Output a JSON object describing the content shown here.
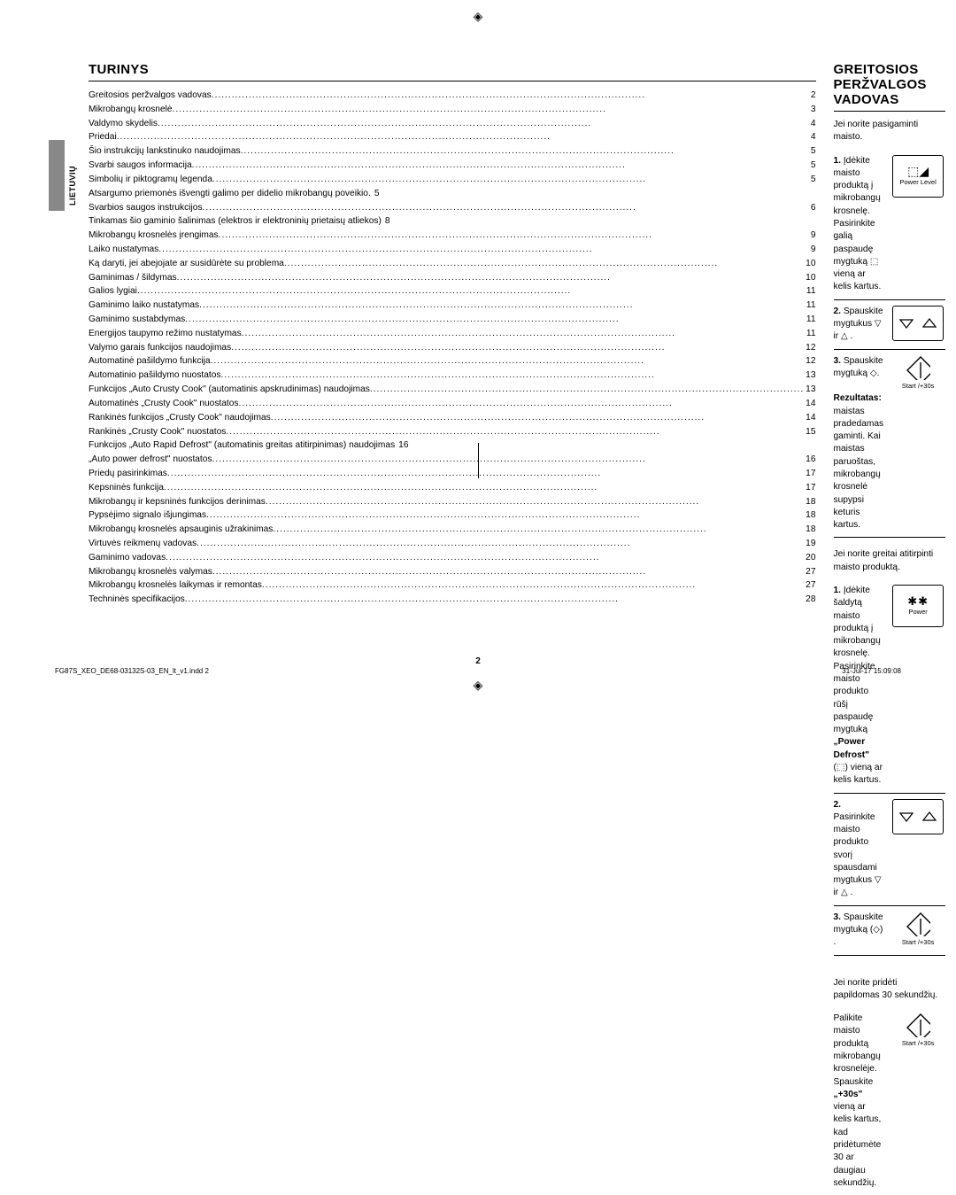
{
  "meta": {
    "side_label": "LIETUVIŲ",
    "page_number": "2",
    "footer_left": "FG87S_XEO_DE68-03132S-03_EN_lt_v1.indd   2",
    "footer_right": "31-Jul-17   15:09:08",
    "registration_mark": "◈"
  },
  "left": {
    "heading": "TURINYS",
    "toc": [
      {
        "t": "Greitosios peržvalgos vadovas",
        "p": "2"
      },
      {
        "t": "Mikrobangų krosnelė",
        "p": "3"
      },
      {
        "t": "Valdymo skydelis",
        "p": "4"
      },
      {
        "t": "Priedai",
        "p": "4"
      },
      {
        "t": "Šio instrukcijų lankstinuko naudojimas",
        "p": "5"
      },
      {
        "t": "Svarbi saugos informacija",
        "p": "5"
      },
      {
        "t": "Simbolių ir piktogramų legenda",
        "p": "5"
      },
      {
        "t": "Atsargumo priemonės išvengti galimo per didelio mikrobangų poveikio.",
        "p": "5",
        "nodots": true
      },
      {
        "t": "Svarbios saugos instrukcijos",
        "p": "6"
      },
      {
        "t": "Tinkamas šio gaminio šalinimas (elektros ir elektroninių prietaisų atliekos)",
        "p": "8",
        "nodots": true
      },
      {
        "t": "Mikrobangų krosnelės įrengimas",
        "p": "9"
      },
      {
        "t": "Laiko nustatymas",
        "p": "9"
      },
      {
        "t": "Ką daryti, jei abejojate ar susidūrėte su problema",
        "p": "10"
      },
      {
        "t": "Gaminimas / šildymas",
        "p": "10"
      },
      {
        "t": "Galios lygiai",
        "p": "11"
      },
      {
        "t": "Gaminimo laiko nustatymas",
        "p": "11"
      },
      {
        "t": "Gaminimo sustabdymas",
        "p": "11"
      },
      {
        "t": "Energijos taupymo režimo nustatymas",
        "p": "11"
      },
      {
        "t": "Valymo garais funkcijos naudojimas",
        "p": "12"
      },
      {
        "t": "Automatinė pašildymo funkcija",
        "p": "12"
      },
      {
        "t": "Automatinio pašildymo nuostatos",
        "p": "13"
      },
      {
        "t": "Funkcijos „Auto Crusty Cook\" (automatinis apskrudinimas) naudojimas",
        "p": "13"
      },
      {
        "t": "Automatinės „Crusty Cook\" nuostatos",
        "p": "14"
      },
      {
        "t": "Rankinės funkcijos „Crusty Cook\" naudojimas",
        "p": "14"
      },
      {
        "t": "Rankinės „Crusty Cook\" nuostatos",
        "p": "15"
      },
      {
        "t": "Funkcijos „Auto Rapid Defrost\" (automatinis greitas atitirpinimas) naudojimas",
        "p": "16",
        "nodots": true
      },
      {
        "t": "„Auto power defrost\" nuostatos",
        "p": "16"
      },
      {
        "t": "Priedų pasirinkimas",
        "p": "17"
      },
      {
        "t": "Kepsninės funkcija",
        "p": "17"
      },
      {
        "t": "Mikrobangų ir kepsninės funkcijos derinimas",
        "p": "18"
      },
      {
        "t": "Pypsėjimo signalo išjungimas",
        "p": "18"
      },
      {
        "t": "Mikrobangų krosnelės apsauginis užrakinimas",
        "p": "18"
      },
      {
        "t": "Virtuvės reikmenų vadovas",
        "p": "19"
      },
      {
        "t": "Gaminimo vadovas",
        "p": "20"
      },
      {
        "t": "Mikrobangų krosnelės valymas",
        "p": "27"
      },
      {
        "t": "Mikrobangų krosnelės laikymas ir remontas",
        "p": "27"
      },
      {
        "t": "Techninės specifikacijos",
        "p": "28"
      }
    ]
  },
  "right": {
    "heading": "GREITOSIOS PERŽVALGOS VADOVAS",
    "section1": {
      "intro": "Jei norite pasigaminti maisto.",
      "step1_num": "1.",
      "step1_a": "Įdėkite maisto produktą į mikrobangų krosnelę.",
      "step1_b": "Pasirinkite galią paspaudę mygtuką ⬚ vieną ar kelis kartus.",
      "icon1_label": "Power Level",
      "step2_num": "2.",
      "step2": "Spauskite mygtukus ▽ ir △ .",
      "step3_num": "3.",
      "step3": "Spauskite mygtuką ◇.",
      "result_label": "Rezultatas:",
      "result_text": "maistas pradedamas gaminti. Kai maistas paruoštas, mikrobangų krosnelė supypsi keturis kartus.",
      "icon3_label": "Start /+30s"
    },
    "section2": {
      "intro": "Jei norite greitai atitirpinti maisto produktą.",
      "step1_num": "1.",
      "step1_a": "Įdėkite šaldytą maisto produktą į mikrobangų krosnelę.",
      "step1_b1": "Pasirinkite maisto produkto rūšį paspaudę mygtuką",
      "step1_b2": "„Power Defrost\"",
      "step1_b3": "(⬚) vieną ar kelis kartus.",
      "icon1_label": "Power",
      "step2_num": "2.",
      "step2": "Pasirinkite maisto produkto svorį spausdami mygtukus ▽ ir △ .",
      "step3_num": "3.",
      "step3": "Spauskite mygtuką (◇) .",
      "icon3_label": "Start /+30s"
    },
    "section3": {
      "intro": "Jei norite pridėti papildomas 30 sekundžių.",
      "line1": "Palikite maisto produktą mikrobangų krosnelėje.",
      "line2a": "Spauskite ",
      "line2b": "„+30s\"",
      "line2c": " vieną ar kelis kartus, kad pridėtumėte 30 ar daugiau sekundžių.",
      "icon_label": "Start /+30s"
    }
  }
}
